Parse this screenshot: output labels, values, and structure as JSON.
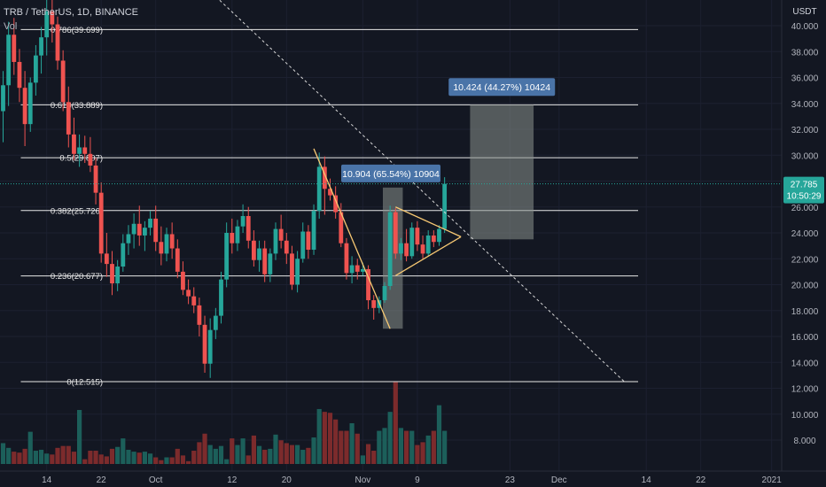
{
  "header": {
    "symbol_line": "TRB / TetherUS, 1D, BINANCE",
    "vol_label": "Vol"
  },
  "price_axis": {
    "currency": "USDT",
    "ticks": [
      "40.000",
      "38.000",
      "36.000",
      "34.000",
      "32.000",
      "30.000",
      "28.000",
      "26.000",
      "24.000",
      "22.000",
      "20.000",
      "18.000",
      "16.000",
      "14.000",
      "12.000",
      "10.000",
      "8.000"
    ],
    "last_price": "27.785",
    "countdown": "10:50:29"
  },
  "time_axis": {
    "ticks": [
      "14",
      "22",
      "Oct",
      "12",
      "20",
      "Nov",
      "9",
      "23",
      "Dec",
      "14",
      "22",
      "2021"
    ]
  },
  "fib_levels": [
    {
      "label": "0.786(39.699)",
      "price": 39.699
    },
    {
      "label": "0.618(33.889)",
      "price": 33.889
    },
    {
      "label": "0.5(29.807)",
      "price": 29.807
    },
    {
      "label": "0.382(25.726)",
      "price": 25.726
    },
    {
      "label": "0.236(20.677)",
      "price": 20.677
    },
    {
      "label": "0(12.515)",
      "price": 12.515
    }
  ],
  "measure_boxes": [
    {
      "label": "10.904 (65.54%) 10904"
    },
    {
      "label": "10.424 (44.27%) 10424"
    }
  ],
  "colors": {
    "up": "#26a69a",
    "down": "#ef5350",
    "vol_up": "#1c5f5a",
    "vol_down": "#7c2b2c",
    "fib": "#e8e8e8",
    "trend": "#f7c873",
    "label_bg": "#4a74a8",
    "box": "#8a928c",
    "price_tag": "#26a69a"
  },
  "chart_data": {
    "type": "candlestick",
    "title": "TRB / TetherUS, 1D, BINANCE",
    "ylim": [
      6.4,
      42
    ],
    "y_unit": "USDT",
    "candles": [
      {
        "o": 33.4,
        "h": 36.5,
        "l": 31.0,
        "c": 35.4
      },
      {
        "o": 35.4,
        "h": 40.3,
        "l": 33.8,
        "c": 39.3
      },
      {
        "o": 39.3,
        "h": 40.6,
        "l": 36.2,
        "c": 37.2
      },
      {
        "o": 37.2,
        "h": 38.2,
        "l": 34.1,
        "c": 35.2
      },
      {
        "o": 35.2,
        "h": 36.5,
        "l": 30.7,
        "c": 32.4
      },
      {
        "o": 32.4,
        "h": 36.0,
        "l": 31.8,
        "c": 35.6
      },
      {
        "o": 35.6,
        "h": 38.5,
        "l": 34.6,
        "c": 37.7
      },
      {
        "o": 37.7,
        "h": 39.9,
        "l": 36.3,
        "c": 39.1
      },
      {
        "o": 39.1,
        "h": 42.0,
        "l": 37.7,
        "c": 41.1
      },
      {
        "o": 41.1,
        "h": 42.0,
        "l": 38.7,
        "c": 40.1
      },
      {
        "o": 40.1,
        "h": 40.7,
        "l": 36.6,
        "c": 37.3
      },
      {
        "o": 37.3,
        "h": 38.1,
        "l": 33.4,
        "c": 34.1
      },
      {
        "o": 34.1,
        "h": 35.3,
        "l": 30.6,
        "c": 31.6
      },
      {
        "o": 31.6,
        "h": 32.9,
        "l": 29.6,
        "c": 30.1
      },
      {
        "o": 30.1,
        "h": 31.6,
        "l": 29.1,
        "c": 30.6
      },
      {
        "o": 30.6,
        "h": 31.5,
        "l": 29.4,
        "c": 30.1
      },
      {
        "o": 30.1,
        "h": 31.4,
        "l": 28.7,
        "c": 29.2
      },
      {
        "o": 29.2,
        "h": 29.8,
        "l": 26.2,
        "c": 27.1
      },
      {
        "o": 27.1,
        "h": 27.9,
        "l": 21.7,
        "c": 22.4
      },
      {
        "o": 22.4,
        "h": 24.0,
        "l": 20.6,
        "c": 21.6
      },
      {
        "o": 21.6,
        "h": 22.6,
        "l": 19.2,
        "c": 20.1
      },
      {
        "o": 20.1,
        "h": 21.9,
        "l": 19.5,
        "c": 21.4
      },
      {
        "o": 21.4,
        "h": 23.9,
        "l": 21.0,
        "c": 23.2
      },
      {
        "o": 23.2,
        "h": 24.6,
        "l": 22.3,
        "c": 23.9
      },
      {
        "o": 23.9,
        "h": 25.5,
        "l": 22.8,
        "c": 24.7
      },
      {
        "o": 24.7,
        "h": 26.1,
        "l": 23.0,
        "c": 23.8
      },
      {
        "o": 23.8,
        "h": 24.9,
        "l": 22.6,
        "c": 24.4
      },
      {
        "o": 24.4,
        "h": 25.7,
        "l": 23.8,
        "c": 25.1
      },
      {
        "o": 25.1,
        "h": 26.1,
        "l": 22.6,
        "c": 23.3
      },
      {
        "o": 23.3,
        "h": 24.5,
        "l": 21.5,
        "c": 22.4
      },
      {
        "o": 22.4,
        "h": 24.4,
        "l": 21.8,
        "c": 23.9
      },
      {
        "o": 23.9,
        "h": 24.8,
        "l": 22.0,
        "c": 22.8
      },
      {
        "o": 22.8,
        "h": 23.5,
        "l": 20.5,
        "c": 21.0
      },
      {
        "o": 21.0,
        "h": 21.8,
        "l": 19.2,
        "c": 19.6
      },
      {
        "o": 19.6,
        "h": 20.4,
        "l": 18.5,
        "c": 19.1
      },
      {
        "o": 19.1,
        "h": 19.8,
        "l": 17.8,
        "c": 18.4
      },
      {
        "o": 18.4,
        "h": 19.0,
        "l": 16.0,
        "c": 16.9
      },
      {
        "o": 16.9,
        "h": 17.6,
        "l": 13.2,
        "c": 13.9
      },
      {
        "o": 13.9,
        "h": 17.4,
        "l": 12.8,
        "c": 16.5
      },
      {
        "o": 16.5,
        "h": 18.2,
        "l": 15.8,
        "c": 17.6
      },
      {
        "o": 17.6,
        "h": 21.0,
        "l": 17.0,
        "c": 20.4
      },
      {
        "o": 20.4,
        "h": 24.8,
        "l": 19.8,
        "c": 24.0
      },
      {
        "o": 24.0,
        "h": 25.1,
        "l": 22.4,
        "c": 23.2
      },
      {
        "o": 23.2,
        "h": 25.0,
        "l": 22.6,
        "c": 24.5
      },
      {
        "o": 24.5,
        "h": 26.2,
        "l": 24.0,
        "c": 25.3
      },
      {
        "o": 25.3,
        "h": 26.0,
        "l": 22.8,
        "c": 23.4
      },
      {
        "o": 23.4,
        "h": 24.2,
        "l": 21.4,
        "c": 21.9
      },
      {
        "o": 21.9,
        "h": 23.4,
        "l": 21.0,
        "c": 22.8
      },
      {
        "o": 22.8,
        "h": 23.4,
        "l": 20.2,
        "c": 20.8
      },
      {
        "o": 20.8,
        "h": 22.8,
        "l": 20.2,
        "c": 22.4
      },
      {
        "o": 22.4,
        "h": 24.8,
        "l": 21.9,
        "c": 24.3
      },
      {
        "o": 24.3,
        "h": 25.4,
        "l": 22.8,
        "c": 23.4
      },
      {
        "o": 23.4,
        "h": 24.0,
        "l": 21.6,
        "c": 22.4
      },
      {
        "o": 22.4,
        "h": 23.0,
        "l": 19.6,
        "c": 20.0
      },
      {
        "o": 20.0,
        "h": 22.6,
        "l": 19.4,
        "c": 22.0
      },
      {
        "o": 22.0,
        "h": 24.8,
        "l": 21.7,
        "c": 24.1
      },
      {
        "o": 24.1,
        "h": 24.6,
        "l": 22.0,
        "c": 22.7
      },
      {
        "o": 22.7,
        "h": 26.2,
        "l": 22.3,
        "c": 25.7
      },
      {
        "o": 25.7,
        "h": 30.2,
        "l": 25.1,
        "c": 29.1
      },
      {
        "o": 29.1,
        "h": 29.9,
        "l": 25.4,
        "c": 27.4
      },
      {
        "o": 27.4,
        "h": 28.2,
        "l": 26.5,
        "c": 26.9
      },
      {
        "o": 26.9,
        "h": 27.6,
        "l": 25.1,
        "c": 25.6
      },
      {
        "o": 25.6,
        "h": 26.3,
        "l": 22.9,
        "c": 23.2
      },
      {
        "o": 23.2,
        "h": 23.6,
        "l": 20.4,
        "c": 20.9
      },
      {
        "o": 20.9,
        "h": 22.2,
        "l": 20.1,
        "c": 21.5
      },
      {
        "o": 21.5,
        "h": 22.0,
        "l": 20.4,
        "c": 21.0
      },
      {
        "o": 21.0,
        "h": 21.7,
        "l": 20.7,
        "c": 21.2
      },
      {
        "o": 21.2,
        "h": 21.5,
        "l": 18.1,
        "c": 18.8
      },
      {
        "o": 18.8,
        "h": 19.2,
        "l": 17.3,
        "c": 18.2
      },
      {
        "o": 18.2,
        "h": 19.1,
        "l": 17.8,
        "c": 18.8
      },
      {
        "o": 18.8,
        "h": 20.2,
        "l": 18.6,
        "c": 19.9
      },
      {
        "o": 19.9,
        "h": 26.1,
        "l": 19.6,
        "c": 25.6
      },
      {
        "o": 25.6,
        "h": 25.9,
        "l": 22.0,
        "c": 22.4
      },
      {
        "o": 22.4,
        "h": 23.6,
        "l": 21.9,
        "c": 23.2
      },
      {
        "o": 23.2,
        "h": 24.3,
        "l": 21.8,
        "c": 22.2
      },
      {
        "o": 22.2,
        "h": 24.8,
        "l": 22.0,
        "c": 24.4
      },
      {
        "o": 24.4,
        "h": 24.9,
        "l": 22.6,
        "c": 23.1
      },
      {
        "o": 23.1,
        "h": 23.8,
        "l": 22.0,
        "c": 22.4
      },
      {
        "o": 22.4,
        "h": 24.2,
        "l": 22.2,
        "c": 23.8
      },
      {
        "o": 23.8,
        "h": 24.2,
        "l": 22.9,
        "c": 23.3
      },
      {
        "o": 23.3,
        "h": 24.6,
        "l": 23.0,
        "c": 24.3
      },
      {
        "o": 24.3,
        "h": 28.3,
        "l": 24.0,
        "c": 27.785
      }
    ],
    "volumes": [
      9.0,
      8.5,
      8.1,
      8.0,
      8.4,
      10.2,
      8.2,
      8.3,
      7.9,
      7.8,
      8.5,
      8.7,
      8.7,
      8.1,
      12.5,
      7.3,
      8.2,
      8.2,
      7.8,
      7.6,
      8.4,
      8.6,
      9.5,
      8.3,
      8.1,
      8.0,
      8.1,
      7.9,
      7.5,
      7.2,
      7.5,
      7.5,
      8.4,
      7.7,
      7.1,
      8.2,
      9.1,
      10.0,
      8.8,
      8.4,
      8.7,
      7.3,
      9.5,
      8.8,
      9.5,
      7.7,
      9.8,
      8.7,
      8.3,
      8.4,
      9.9,
      9.3,
      9.0,
      8.8,
      8.8,
      8.3,
      8.5,
      9.6,
      12.6,
      12.3,
      12.2,
      11.5,
      10.3,
      10.3,
      11.1,
      10.0,
      7.7,
      8.9,
      8.2,
      10.3,
      10.6,
      12.3,
      15.5,
      10.6,
      10.3,
      10.3,
      8.8,
      9.1,
      9.8,
      10.3,
      13.0,
      10.3
    ],
    "annotations": {
      "down_trendline": {
        "from_index": 57,
        "from_price": 30.5,
        "to_index": 71,
        "to_price": 16.6
      },
      "triangle_upper": {
        "from_index": 72,
        "from_price": 26.0,
        "to_index": 84,
        "to_price": 23.7
      },
      "triangle_lower": {
        "from_index": 72,
        "from_price": 20.7,
        "to_index": 84,
        "to_price": 23.7
      },
      "long_dashed": {
        "from_index": 22,
        "from_price": 49.0,
        "to_index": 114,
        "to_price": 12.5
      },
      "measure_1": {
        "from_index": 70,
        "to_index": 73,
        "from_price": 16.6,
        "to_price": 27.5
      },
      "measure_2": {
        "from_index": 86,
        "to_index": 97,
        "from_price": 23.5,
        "to_price": 33.9
      }
    }
  }
}
